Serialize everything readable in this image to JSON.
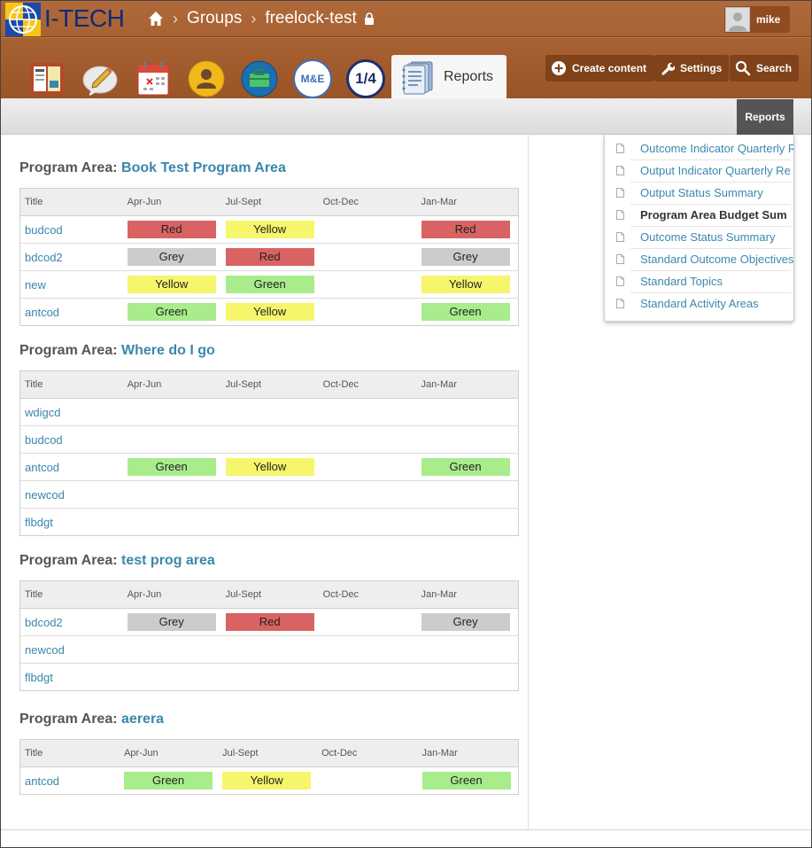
{
  "brand": {
    "name": "I-TECH"
  },
  "breadcrumb": {
    "items": [
      "Groups",
      "freelock-test"
    ]
  },
  "user": {
    "name": "mike"
  },
  "tabs": {
    "active_label": "Reports",
    "me_label": "M&E",
    "quarter_label": "1/4"
  },
  "actions": {
    "create": "Create content",
    "settings": "Settings",
    "search": "Search"
  },
  "subbar": {
    "reports_label": "Reports"
  },
  "table_headers": {
    "title": "Title",
    "q1": "Apr-Jun",
    "q2": "Jul-Sept",
    "q3": "Oct-Dec",
    "q4": "Jan-Mar"
  },
  "program_prefix": "Program Area:",
  "sections": [
    {
      "name": "Book Test Program Area",
      "rows": [
        {
          "title": "budcod",
          "q1": "Red",
          "q2": "Yellow",
          "q3": "",
          "q4": "Red"
        },
        {
          "title": "bdcod2",
          "q1": "Grey",
          "q2": "Red",
          "q3": "",
          "q4": "Grey"
        },
        {
          "title": "new",
          "q1": "Yellow",
          "q2": "Green",
          "q3": "",
          "q4": "Yellow"
        },
        {
          "title": "antcod",
          "q1": "Green",
          "q2": "Yellow",
          "q3": "",
          "q4": "Green"
        }
      ]
    },
    {
      "name": "Where do I go",
      "rows": [
        {
          "title": "wdigcd",
          "q1": "",
          "q2": "",
          "q3": "",
          "q4": ""
        },
        {
          "title": "budcod",
          "q1": "",
          "q2": "",
          "q3": "",
          "q4": ""
        },
        {
          "title": "antcod",
          "q1": "Green",
          "q2": "Yellow",
          "q3": "",
          "q4": "Green"
        },
        {
          "title": "newcod",
          "q1": "",
          "q2": "",
          "q3": "",
          "q4": ""
        },
        {
          "title": "flbdgt",
          "q1": "",
          "q2": "",
          "q3": "",
          "q4": ""
        }
      ]
    },
    {
      "name": "test prog area",
      "rows": [
        {
          "title": "bdcod2",
          "q1": "Grey",
          "q2": "Red",
          "q3": "",
          "q4": "Grey"
        },
        {
          "title": "newcod",
          "q1": "",
          "q2": "",
          "q3": "",
          "q4": ""
        },
        {
          "title": "flbdgt",
          "q1": "",
          "q2": "",
          "q3": "",
          "q4": ""
        }
      ]
    },
    {
      "name": "aerera",
      "rows": [
        {
          "title": "antcod",
          "q1": "Green",
          "q2": "Yellow",
          "q3": "",
          "q4": "Green"
        }
      ]
    }
  ],
  "dropdown": [
    {
      "label": "Outcome Indicator Quarterly R",
      "active": false
    },
    {
      "label": "Output Indicator Quarterly Re",
      "active": false
    },
    {
      "label": "Output Status Summary",
      "active": false
    },
    {
      "label": "Program Area Budget Sum",
      "active": true
    },
    {
      "label": "Outcome Status Summary",
      "active": false
    },
    {
      "label": "Standard Outcome Objectives",
      "active": false
    },
    {
      "label": "Standard Topics",
      "active": false
    },
    {
      "label": "Standard Activity Areas",
      "active": false
    }
  ],
  "status_colors": {
    "Red": "#d96363",
    "Yellow": "#f6f66c",
    "Grey": "#cccccc",
    "Green": "#a8ec8c"
  }
}
